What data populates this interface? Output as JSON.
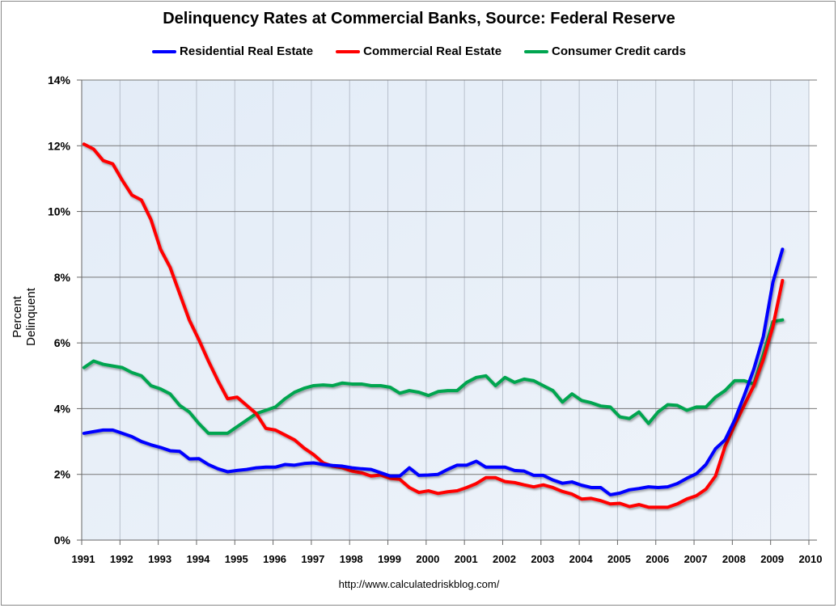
{
  "chart_data": {
    "type": "line",
    "title": "Delinquency Rates at Commercial Banks, Source: Federal Reserve",
    "ylabel": "Percent Delinquent",
    "xlabel": "",
    "source_note": "http://www.calculatedriskblog.com/",
    "ylim": [
      0,
      14
    ],
    "yticks": [
      "0%",
      "2%",
      "4%",
      "6%",
      "8%",
      "10%",
      "12%",
      "14%"
    ],
    "xlim": [
      1991,
      2010
    ],
    "xticks": [
      "1991",
      "1992",
      "1993",
      "1994",
      "1995",
      "1996",
      "1997",
      "1998",
      "1999",
      "2000",
      "2001",
      "2002",
      "2003",
      "2004",
      "2005",
      "2006",
      "2007",
      "2008",
      "2009",
      "2010"
    ],
    "x_frequency": "quarterly",
    "x_start": "1991Q1",
    "x_end": "2009Q2",
    "grid": true,
    "legend_position": "top",
    "series": [
      {
        "name": "Residential Real Estate",
        "color": "#0000ff",
        "values": [
          3.25,
          3.3,
          3.35,
          3.35,
          3.25,
          3.15,
          3.0,
          2.9,
          2.82,
          2.72,
          2.7,
          2.47,
          2.48,
          2.3,
          2.17,
          2.08,
          2.12,
          2.15,
          2.2,
          2.22,
          2.22,
          2.3,
          2.28,
          2.33,
          2.35,
          2.3,
          2.27,
          2.25,
          2.2,
          2.17,
          2.15,
          2.05,
          1.95,
          1.95,
          2.2,
          1.97,
          1.98,
          2.0,
          2.15,
          2.28,
          2.28,
          2.4,
          2.22,
          2.22,
          2.22,
          2.12,
          2.1,
          1.97,
          1.97,
          1.83,
          1.73,
          1.77,
          1.67,
          1.6,
          1.6,
          1.38,
          1.43,
          1.53,
          1.57,
          1.62,
          1.6,
          1.62,
          1.72,
          1.88,
          2.02,
          2.3,
          2.78,
          3.05,
          3.65,
          4.4,
          5.2,
          6.2,
          7.85,
          8.85
        ]
      },
      {
        "name": "Commercial Real Estate",
        "color": "#ff0000",
        "values": [
          12.05,
          11.9,
          11.55,
          11.45,
          10.95,
          10.5,
          10.35,
          9.75,
          8.85,
          8.3,
          7.5,
          6.7,
          6.1,
          5.45,
          4.85,
          4.3,
          4.35,
          4.1,
          3.85,
          3.4,
          3.35,
          3.2,
          3.05,
          2.8,
          2.6,
          2.35,
          2.25,
          2.2,
          2.1,
          2.05,
          1.95,
          1.98,
          1.88,
          1.85,
          1.6,
          1.45,
          1.5,
          1.42,
          1.47,
          1.5,
          1.6,
          1.72,
          1.9,
          1.9,
          1.78,
          1.75,
          1.68,
          1.62,
          1.68,
          1.6,
          1.48,
          1.4,
          1.25,
          1.27,
          1.2,
          1.1,
          1.12,
          1.02,
          1.08,
          1.0,
          1.0,
          1.0,
          1.1,
          1.25,
          1.35,
          1.55,
          1.95,
          2.85,
          3.5,
          4.1,
          4.7,
          5.5,
          6.5,
          7.9
        ]
      },
      {
        "name": "Consumer Credit cards",
        "color": "#00a550",
        "values": [
          5.25,
          5.45,
          5.35,
          5.3,
          5.25,
          5.1,
          5.0,
          4.7,
          4.6,
          4.45,
          4.1,
          3.9,
          3.55,
          3.25,
          3.25,
          3.25,
          3.45,
          3.65,
          3.85,
          3.95,
          4.05,
          4.3,
          4.5,
          4.62,
          4.7,
          4.72,
          4.7,
          4.78,
          4.75,
          4.75,
          4.7,
          4.7,
          4.65,
          4.47,
          4.55,
          4.5,
          4.4,
          4.52,
          4.55,
          4.55,
          4.8,
          4.95,
          5.0,
          4.7,
          4.95,
          4.8,
          4.9,
          4.85,
          4.7,
          4.55,
          4.2,
          4.45,
          4.25,
          4.18,
          4.08,
          4.05,
          3.75,
          3.7,
          3.9,
          3.55,
          3.9,
          4.12,
          4.1,
          3.95,
          4.05,
          4.05,
          4.35,
          4.55,
          4.85,
          4.85,
          4.75,
          5.65,
          6.65,
          6.7
        ]
      }
    ]
  }
}
